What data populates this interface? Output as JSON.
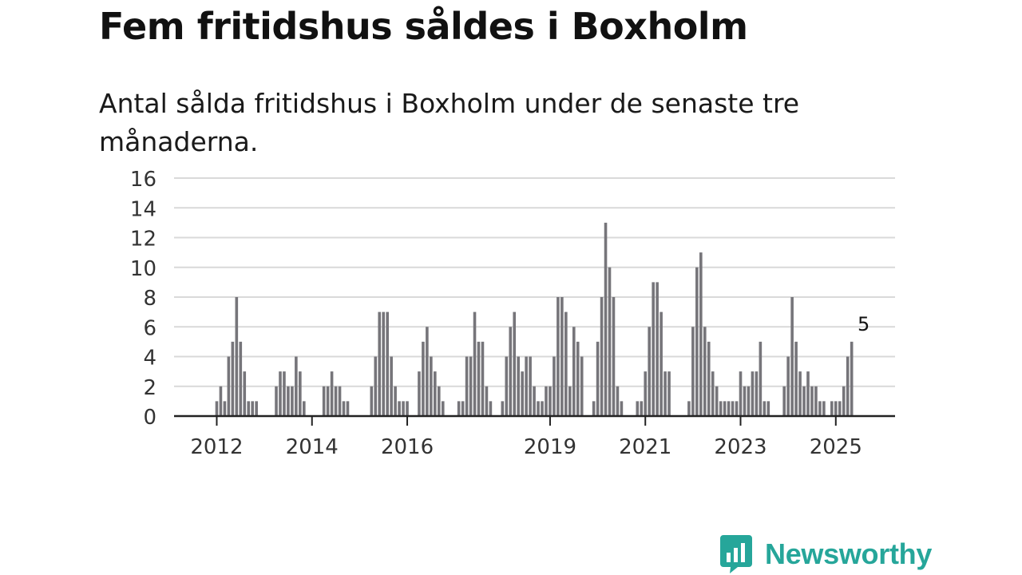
{
  "title": "Fem fritidshus såldes i Boxholm",
  "subtitle": "Antal sålda fritidshus i Boxholm under de senaste tre månaderna.",
  "logo": {
    "text": "Newsworthy",
    "icon": "newsworthy-bar-chart-icon"
  },
  "colors": {
    "bar": "#76757a",
    "highlight": "#1a9e95",
    "grid": "#d9d9d9",
    "axis": "#222222",
    "logo": "#26a69a"
  },
  "chart_data": {
    "type": "bar",
    "title": "Fem fritidshus såldes i Boxholm",
    "xlabel": "",
    "ylabel": "",
    "ylim": [
      0,
      16
    ],
    "yticks": [
      0,
      2,
      4,
      6,
      8,
      10,
      12,
      14,
      16
    ],
    "grid": true,
    "xtick_labels": [
      {
        "label": "2012",
        "index": 1
      },
      {
        "label": "2014",
        "index": 25
      },
      {
        "label": "2016",
        "index": 49
      },
      {
        "label": "2019",
        "index": 85
      },
      {
        "label": "2021",
        "index": 109
      },
      {
        "label": "2023",
        "index": 133
      },
      {
        "label": "2025",
        "index": 157
      }
    ],
    "highlight": {
      "index": 164,
      "value": 5,
      "label": "5"
    },
    "values": [
      0,
      1,
      2,
      1,
      4,
      5,
      8,
      5,
      3,
      1,
      1,
      1,
      0,
      0,
      0,
      0,
      2,
      3,
      3,
      2,
      2,
      4,
      3,
      1,
      0,
      0,
      0,
      0,
      2,
      2,
      3,
      2,
      2,
      1,
      1,
      0,
      0,
      0,
      0,
      0,
      2,
      4,
      7,
      7,
      7,
      4,
      2,
      1,
      1,
      1,
      0,
      0,
      3,
      5,
      6,
      4,
      3,
      2,
      1,
      0,
      0,
      0,
      1,
      1,
      4,
      4,
      7,
      5,
      5,
      2,
      1,
      0,
      0,
      1,
      4,
      6,
      7,
      4,
      3,
      4,
      4,
      2,
      1,
      1,
      2,
      2,
      4,
      8,
      8,
      7,
      2,
      6,
      5,
      4,
      0,
      0,
      1,
      5,
      8,
      13,
      10,
      8,
      2,
      1,
      0,
      0,
      0,
      1,
      1,
      3,
      6,
      9,
      9,
      7,
      3,
      3,
      0,
      0,
      0,
      0,
      1,
      6,
      10,
      11,
      6,
      5,
      3,
      2,
      1,
      1,
      1,
      1,
      1,
      3,
      2,
      2,
      3,
      3,
      5,
      1,
      1,
      0,
      0,
      0,
      2,
      4,
      8,
      5,
      3,
      2,
      3,
      2,
      2,
      1,
      1,
      0,
      1,
      1,
      1,
      2,
      4,
      5
    ]
  }
}
